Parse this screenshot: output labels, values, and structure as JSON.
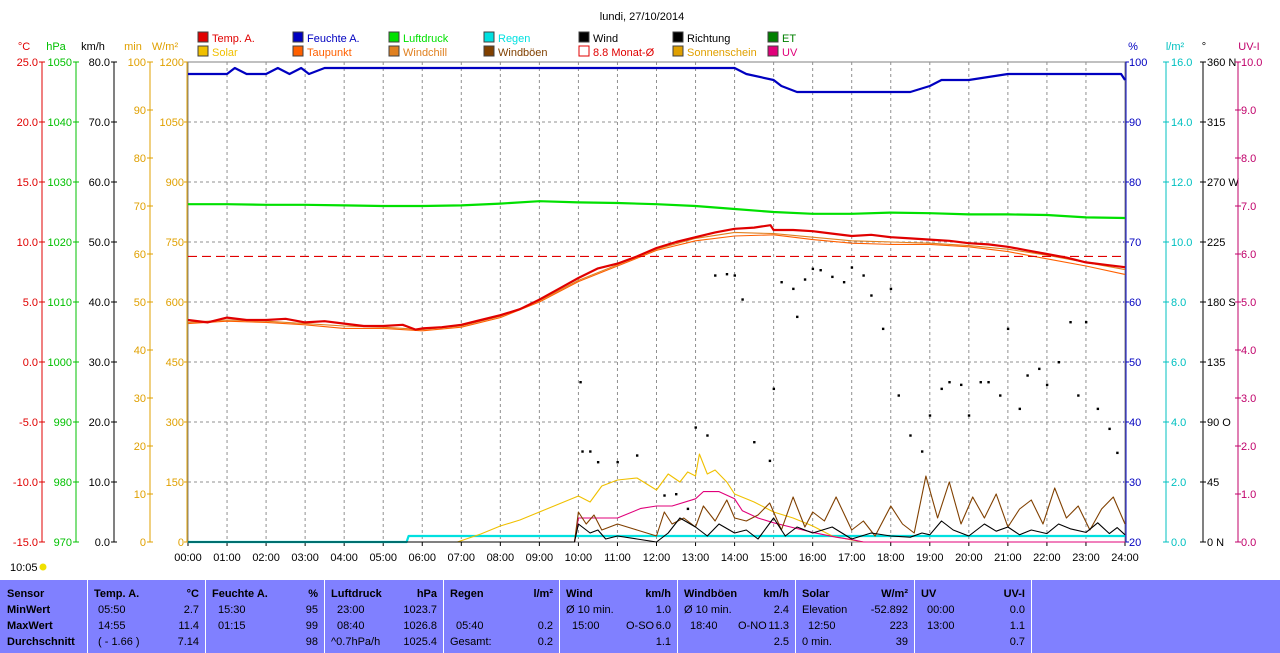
{
  "title": "lundi, 27/10/2014",
  "time_label": "10:05",
  "legend": [
    {
      "label": "Temp. A.",
      "color": "#e00000"
    },
    {
      "label": "Solar",
      "color": "#f0c000"
    },
    {
      "label": "Feuchte A.",
      "color": "#0000c0"
    },
    {
      "label": "Taupunkt",
      "color": "#ff6000"
    },
    {
      "label": "Luftdruck",
      "color": "#00e000"
    },
    {
      "label": "Windchill",
      "color": "#e08020"
    },
    {
      "label": "Regen",
      "color": "#00e0e0"
    },
    {
      "label": "Windböen",
      "color": "#804000"
    },
    {
      "label": "Wind",
      "color": "#000000"
    },
    {
      "label": "8.8 Monat-Ø",
      "color": "#e00000"
    },
    {
      "label": "Richtung",
      "color": "#000000"
    },
    {
      "label": "Sonnenschein",
      "color": "#e0a000"
    },
    {
      "label": "ET",
      "color": "#008000"
    },
    {
      "label": "UV",
      "color": "#e0007a"
    }
  ],
  "axis_units": {
    "temp": "°C",
    "pressure": "hPa",
    "wind": "km/h",
    "min": "min",
    "solar": "W/m²",
    "humidity": "%",
    "rain": "l/m²",
    "direction": "°",
    "uv": "UV-I"
  },
  "axis_ticks": {
    "temp": [
      "25.0",
      "20.0",
      "15.0",
      "10.0",
      "5.0",
      "0.0",
      "-5.0",
      "-10.0",
      "-15.0"
    ],
    "pressure": [
      "1050",
      "1040",
      "1030",
      "1020",
      "1010",
      "1000",
      "990",
      "980",
      "970"
    ],
    "wind": [
      "80.0",
      "70.0",
      "60.0",
      "50.0",
      "40.0",
      "30.0",
      "20.0",
      "10.0",
      "0.0"
    ],
    "min": [
      "100",
      "90",
      "80",
      "70",
      "60",
      "50",
      "40",
      "30",
      "20",
      "10",
      "0"
    ],
    "solar": [
      "1200",
      "1050",
      "900",
      "750",
      "600",
      "450",
      "300",
      "150",
      "0"
    ],
    "humidity": [
      "100",
      "90",
      "80",
      "70",
      "60",
      "50",
      "40",
      "30",
      "20"
    ],
    "rain": [
      "16.0",
      "14.0",
      "12.0",
      "10.0",
      "8.0",
      "6.0",
      "4.0",
      "2.0",
      "0.0"
    ],
    "direction": [
      "360 N",
      "315",
      "270 W",
      "225",
      "180 S",
      "135",
      "90 O",
      "45",
      "0 N"
    ],
    "uv": [
      "10.0",
      "9.0",
      "8.0",
      "7.0",
      "6.0",
      "5.0",
      "4.0",
      "3.0",
      "2.0",
      "1.0",
      "0.0"
    ],
    "x": [
      "00:00",
      "01:00",
      "02:00",
      "03:00",
      "04:00",
      "05:00",
      "06:00",
      "07:00",
      "08:00",
      "09:00",
      "10:00",
      "11:00",
      "12:00",
      "13:00",
      "14:00",
      "15:00",
      "16:00",
      "17:00",
      "18:00",
      "19:00",
      "20:00",
      "21:00",
      "22:00",
      "23:00",
      "24:00"
    ]
  },
  "chart_data": {
    "type": "line",
    "title": "lundi, 27/10/2014",
    "x_unit": "hour of day",
    "xlim": [
      0,
      24
    ],
    "series": [
      {
        "name": "Temp. A.",
        "unit": "°C",
        "ylim": [
          -15,
          25
        ],
        "color": "#e00000",
        "x": [
          0,
          0.5,
          1,
          1.5,
          2,
          2.5,
          3,
          3.5,
          4,
          4.5,
          5,
          5.5,
          5.83,
          6,
          6.5,
          7,
          7.5,
          8,
          8.5,
          9,
          9.5,
          10,
          10.5,
          11,
          11.5,
          12,
          12.5,
          13,
          13.5,
          14,
          14.5,
          14.92,
          15,
          15.5,
          16,
          16.5,
          17,
          17.5,
          18,
          18.5,
          19,
          19.5,
          20,
          20.5,
          21,
          21.5,
          22,
          22.5,
          23,
          23.5,
          24
        ],
        "y": [
          3.5,
          3.3,
          3.7,
          3.5,
          3.5,
          3.6,
          3.3,
          3.4,
          3.2,
          3.0,
          3.0,
          3.1,
          2.7,
          2.8,
          2.9,
          3.1,
          3.5,
          3.9,
          4.4,
          5.2,
          6.1,
          7.0,
          7.8,
          8.2,
          8.8,
          9.5,
          10.0,
          10.4,
          10.8,
          11.1,
          11.2,
          11.4,
          11.0,
          11.0,
          10.9,
          10.7,
          10.5,
          10.6,
          10.4,
          10.3,
          10.2,
          10.1,
          9.9,
          9.8,
          9.6,
          9.3,
          9.0,
          8.7,
          8.3,
          8.1,
          7.9
        ]
      },
      {
        "name": "Taupunkt",
        "unit": "°C",
        "ylim": [
          -15,
          25
        ],
        "color": "#ff6000",
        "x": [
          0,
          1,
          2,
          3,
          4,
          5,
          6,
          7,
          8,
          9,
          10,
          11,
          12,
          13,
          14,
          15,
          16,
          17,
          18,
          19,
          20,
          21,
          22,
          23,
          24
        ],
        "y": [
          3.2,
          3.4,
          3.3,
          3.1,
          2.8,
          2.8,
          2.6,
          2.9,
          3.7,
          5.0,
          6.7,
          8.0,
          9.3,
          10.1,
          10.5,
          10.6,
          10.2,
          9.9,
          9.8,
          9.8,
          9.6,
          9.2,
          8.6,
          8.0,
          7.3
        ]
      },
      {
        "name": "Windchill",
        "unit": "°C",
        "ylim": [
          -15,
          25
        ],
        "color": "#e08020",
        "x": [
          0,
          1,
          2,
          3,
          4,
          5,
          6,
          7,
          8,
          9,
          10,
          11,
          12,
          13,
          14,
          15,
          16,
          17,
          18,
          19,
          20,
          21,
          22,
          23,
          24
        ],
        "y": [
          3.3,
          3.5,
          3.4,
          3.2,
          3.0,
          2.9,
          2.7,
          3.0,
          3.8,
          5.1,
          6.8,
          8.1,
          9.4,
          10.3,
          10.8,
          10.7,
          10.4,
          10.1,
          10.0,
          9.9,
          9.7,
          9.4,
          8.9,
          8.3,
          7.7
        ]
      },
      {
        "name": "8.8 Monat-Ø",
        "unit": "°C",
        "ylim": [
          -15,
          25
        ],
        "color": "#e00000",
        "style": "dashed",
        "x": [
          0,
          24
        ],
        "y": [
          8.8,
          8.8
        ]
      },
      {
        "name": "Feuchte A.",
        "unit": "%",
        "ylim": [
          20,
          100
        ],
        "color": "#0000c0",
        "x": [
          0,
          1,
          1.2,
          1.5,
          2,
          2.3,
          2.6,
          2.9,
          3.1,
          3.5,
          5,
          10,
          14,
          14.3,
          15,
          15.2,
          15.6,
          16,
          18,
          18.5,
          19,
          19.3,
          20,
          21,
          22,
          23,
          23.9,
          24
        ],
        "y": [
          98,
          98,
          99,
          98,
          98,
          99,
          98,
          99,
          98,
          99,
          99,
          99,
          99,
          98,
          97,
          96,
          95,
          95,
          95,
          95,
          96,
          97,
          97,
          98,
          98,
          98,
          98,
          97
        ]
      },
      {
        "name": "Luftdruck",
        "unit": "hPa",
        "ylim": [
          970,
          1050
        ],
        "color": "#00e000",
        "x": [
          0,
          1,
          2,
          3,
          4,
          5,
          6,
          7,
          8,
          9,
          10,
          11,
          12,
          13,
          14,
          15,
          16,
          17,
          18,
          19,
          20,
          21,
          22,
          23,
          24
        ],
        "y": [
          1026.3,
          1026.3,
          1026.2,
          1026.2,
          1026.1,
          1026.0,
          1026.0,
          1026.1,
          1026.4,
          1026.8,
          1026.6,
          1026.5,
          1026.3,
          1026.0,
          1025.5,
          1025.0,
          1024.7,
          1024.7,
          1024.9,
          1024.8,
          1024.6,
          1024.6,
          1024.5,
          1024.1,
          1024.0
        ]
      },
      {
        "name": "Regen",
        "unit": "l/m²",
        "ylim": [
          0,
          16
        ],
        "color": "#00e0e0",
        "x": [
          0,
          5.6,
          5.65,
          24
        ],
        "y": [
          0,
          0,
          0.2,
          0.2
        ]
      },
      {
        "name": "Solar",
        "unit": "W/m²",
        "ylim": [
          0,
          1200
        ],
        "color": "#f0c000",
        "x": [
          0,
          6.9,
          7.2,
          7.5,
          8,
          8.5,
          9,
          9.5,
          10,
          10.3,
          10.6,
          11,
          11.5,
          12,
          12.3,
          12.6,
          12.8,
          13,
          13.1,
          13.3,
          13.5,
          13.8,
          14,
          14.5,
          15,
          15.5,
          16,
          16.5,
          17,
          17.3,
          24
        ],
        "y": [
          0,
          0,
          10,
          20,
          40,
          55,
          75,
          95,
          115,
          100,
          140,
          155,
          160,
          130,
          170,
          150,
          175,
          165,
          220,
          170,
          180,
          150,
          120,
          100,
          75,
          60,
          40,
          15,
          5,
          0,
          0
        ]
      },
      {
        "name": "Wind",
        "unit": "km/h",
        "ylim": [
          0,
          80
        ],
        "color": "#000000",
        "x": [
          0,
          9.9,
          10,
          10.3,
          10.5,
          10.7,
          11,
          11.5,
          12,
          12.3,
          12.6,
          13,
          13.3,
          13.6,
          14,
          14.3,
          14.6,
          15,
          15.3,
          15.6,
          16,
          16.5,
          17,
          17.5,
          18,
          18.5,
          18.8,
          19,
          19.3,
          19.6,
          20,
          20.4,
          20.7,
          21,
          21.3,
          21.6,
          22,
          22.3,
          22.6,
          23,
          23.3,
          23.6,
          23.8,
          24
        ],
        "y": [
          0,
          0,
          3,
          1.5,
          2,
          0.5,
          1,
          0.5,
          0,
          1.5,
          4,
          2.5,
          1,
          3,
          1.5,
          2,
          0.5,
          4,
          1,
          2.5,
          1.5,
          2.5,
          0.5,
          1.5,
          1,
          0.8,
          1.5,
          1.2,
          3.5,
          2,
          1,
          3,
          1.8,
          2.5,
          1.2,
          2,
          1.4,
          3,
          2.2,
          1.6,
          3.2,
          1.4,
          2.4,
          1.2
        ]
      },
      {
        "name": "Windböen",
        "unit": "km/h",
        "ylim": [
          0,
          80
        ],
        "color": "#804000",
        "x": [
          0,
          9.9,
          10,
          10.2,
          10.4,
          10.6,
          11,
          11.5,
          12,
          12.2,
          12.4,
          12.7,
          13,
          13.2,
          13.5,
          13.8,
          14,
          14.3,
          14.6,
          14.9,
          15.2,
          15.5,
          15.8,
          16,
          16.3,
          16.6,
          17,
          17.3,
          17.6,
          18,
          18.3,
          18.6,
          18.9,
          19.2,
          19.5,
          19.8,
          20.1,
          20.4,
          20.7,
          21,
          21.3,
          21.6,
          21.9,
          22.2,
          22.5,
          22.8,
          23.1,
          23.4,
          23.7,
          24
        ],
        "y": [
          0,
          0,
          5,
          3,
          4.5,
          2,
          3,
          2,
          1,
          5,
          3,
          4,
          2.5,
          6,
          3.5,
          7,
          4,
          3.5,
          4.5,
          6.5,
          2,
          7.5,
          2.5,
          5,
          3.5,
          7.5,
          2,
          3.5,
          1,
          6,
          3,
          1.5,
          11,
          4,
          10,
          3,
          7.5,
          4,
          8,
          2.5,
          5.5,
          7,
          3,
          9,
          4,
          6,
          2,
          5.5,
          7.5,
          3
        ]
      },
      {
        "name": "Richtung",
        "unit": "°",
        "ylim": [
          0,
          360
        ],
        "style": "points",
        "color": "#000000",
        "x": [
          10.05,
          10.1,
          10.3,
          10.5,
          11,
          11.5,
          12.2,
          12.5,
          12.8,
          13.0,
          13.3,
          13.5,
          13.8,
          14.0,
          14.2,
          14.5,
          14.9,
          15.0,
          15.2,
          15.5,
          15.6,
          15.8,
          16.0,
          16.2,
          16.5,
          16.8,
          17.0,
          17.3,
          17.5,
          17.8,
          18.0,
          18.2,
          18.5,
          18.8,
          19.0,
          19.3,
          19.5,
          19.8,
          20.0,
          20.3,
          20.5,
          20.8,
          21.0,
          21.3,
          21.5,
          21.8,
          22.0,
          22.3,
          22.6,
          22.8,
          23.0,
          23.3,
          23.6,
          23.8
        ],
        "y": [
          120,
          68,
          68,
          60,
          60,
          65,
          35,
          36,
          25,
          86,
          80,
          200,
          201,
          200,
          182,
          75,
          61,
          115,
          195,
          190,
          169,
          197,
          205,
          204,
          199,
          195,
          206,
          200,
          185,
          160,
          190,
          110,
          80,
          68,
          95,
          115,
          120,
          118,
          95,
          120,
          120,
          110,
          160,
          100,
          125,
          130,
          118,
          135,
          165,
          110,
          165,
          100,
          85,
          67
        ]
      },
      {
        "name": "UV",
        "unit": "UV-I",
        "ylim": [
          0,
          10
        ],
        "color": "#e0007a",
        "x": [
          0,
          9.9,
          10,
          11,
          11.6,
          12,
          12.4,
          13,
          13.2,
          13.6,
          14,
          14.2,
          14.6,
          15,
          15.5,
          16,
          16.6,
          17,
          17.3,
          24
        ],
        "y": [
          0,
          0,
          0.5,
          0.5,
          0.7,
          0.75,
          0.75,
          0.9,
          1.05,
          1.05,
          0.9,
          0.65,
          0.5,
          0.4,
          0.3,
          0.2,
          0.1,
          0.05,
          0,
          0
        ]
      }
    ]
  },
  "stats": {
    "sensor": {
      "header": "Sensor",
      "rows": [
        "MinWert",
        "MaxWert",
        "Durchschnitt"
      ]
    },
    "temp": {
      "header": "Temp. A.",
      "unit": "°C",
      "times": [
        "05:50",
        "14:55",
        "( - 1.66 )"
      ],
      "values": [
        "2.7",
        "11.4",
        "7.14"
      ]
    },
    "feuchte": {
      "header": "Feuchte A.",
      "unit": "%",
      "times": [
        "15:30",
        "01:15",
        ""
      ],
      "values": [
        "95",
        "99",
        "98"
      ]
    },
    "luftdruck": {
      "header": "Luftdruck",
      "unit": "hPa",
      "times": [
        "23:00",
        "08:40",
        "^0.7hPa/h"
      ],
      "values": [
        "1023.7",
        "1026.8",
        "1025.4"
      ]
    },
    "regen": {
      "header": "Regen",
      "unit": "l/m²",
      "times": [
        "",
        "05:40",
        "Gesamt:"
      ],
      "values": [
        "",
        "0.2",
        "0.2"
      ]
    },
    "wind": {
      "header": "Wind",
      "unit": "km/h",
      "times": [
        "Ø 10 min.",
        "15:00",
        ""
      ],
      "dirs": [
        "",
        "O-SO",
        ""
      ],
      "values": [
        "1.0",
        "6.0",
        "1.1"
      ]
    },
    "boeen": {
      "header": "Windböen",
      "unit": "km/h",
      "times": [
        "Ø 10 min.",
        "18:40",
        ""
      ],
      "dirs": [
        "",
        "O-NO",
        ""
      ],
      "values": [
        "2.4",
        "11.3",
        "2.5"
      ]
    },
    "solar": {
      "header": "Solar",
      "unit": "W/m²",
      "times": [
        "Elevation",
        "12:50",
        "0 min."
      ],
      "values": [
        "-52.892",
        "223",
        "39"
      ]
    },
    "uv": {
      "header": "UV",
      "unit": "UV-I",
      "times": [
        "00:00",
        "13:00",
        ""
      ],
      "values": [
        "0.0",
        "1.1",
        "0.7"
      ]
    }
  }
}
